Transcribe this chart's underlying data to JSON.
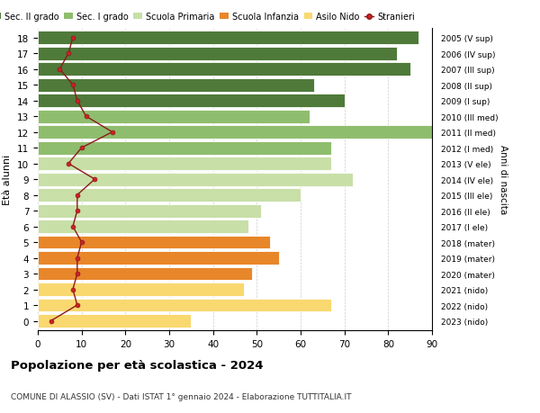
{
  "ages": [
    0,
    1,
    2,
    3,
    4,
    5,
    6,
    7,
    8,
    9,
    10,
    11,
    12,
    13,
    14,
    15,
    16,
    17,
    18
  ],
  "bar_values": [
    35,
    67,
    47,
    49,
    55,
    53,
    48,
    51,
    60,
    72,
    67,
    67,
    91,
    62,
    70,
    63,
    85,
    82,
    87
  ],
  "bar_colors": [
    "#f9d870",
    "#f9d870",
    "#f9d870",
    "#e8862a",
    "#e8862a",
    "#e8862a",
    "#c8dfa8",
    "#c8dfa8",
    "#c8dfa8",
    "#c8dfa8",
    "#c8dfa8",
    "#8fbd6e",
    "#8fbd6e",
    "#8fbd6e",
    "#4f7a3a",
    "#4f7a3a",
    "#4f7a3a",
    "#4f7a3a",
    "#4f7a3a"
  ],
  "right_labels": [
    "2023 (nido)",
    "2022 (nido)",
    "2021 (nido)",
    "2020 (mater)",
    "2019 (mater)",
    "2018 (mater)",
    "2017 (I ele)",
    "2016 (II ele)",
    "2015 (III ele)",
    "2014 (IV ele)",
    "2013 (V ele)",
    "2012 (I med)",
    "2011 (II med)",
    "2010 (III med)",
    "2009 (I sup)",
    "2008 (II sup)",
    "2007 (III sup)",
    "2006 (IV sup)",
    "2005 (V sup)"
  ],
  "stranieri_values": [
    3,
    9,
    8,
    9,
    9,
    10,
    8,
    9,
    9,
    13,
    7,
    10,
    17,
    11,
    9,
    8,
    5,
    7,
    8
  ],
  "title": "Popolazione per età scolastica - 2024",
  "subtitle": "COMUNE DI ALASSIO (SV) - Dati ISTAT 1° gennaio 2024 - Elaborazione TUTTITALIA.IT",
  "ylabel": "Età alunni",
  "right_ylabel": "Anni di nascita",
  "xlim": [
    0,
    90
  ],
  "xticks": [
    0,
    10,
    20,
    30,
    40,
    50,
    60,
    70,
    80,
    90
  ],
  "legend_labels": [
    "Sec. II grado",
    "Sec. I grado",
    "Scuola Primaria",
    "Scuola Infanzia",
    "Asilo Nido",
    "Stranieri"
  ],
  "legend_colors": [
    "#4f7a3a",
    "#8fbd6e",
    "#c8dfa8",
    "#e8862a",
    "#f9d870",
    "#cc2222"
  ],
  "bar_height": 0.85,
  "background_color": "#ffffff",
  "grid_color": "#cccccc"
}
